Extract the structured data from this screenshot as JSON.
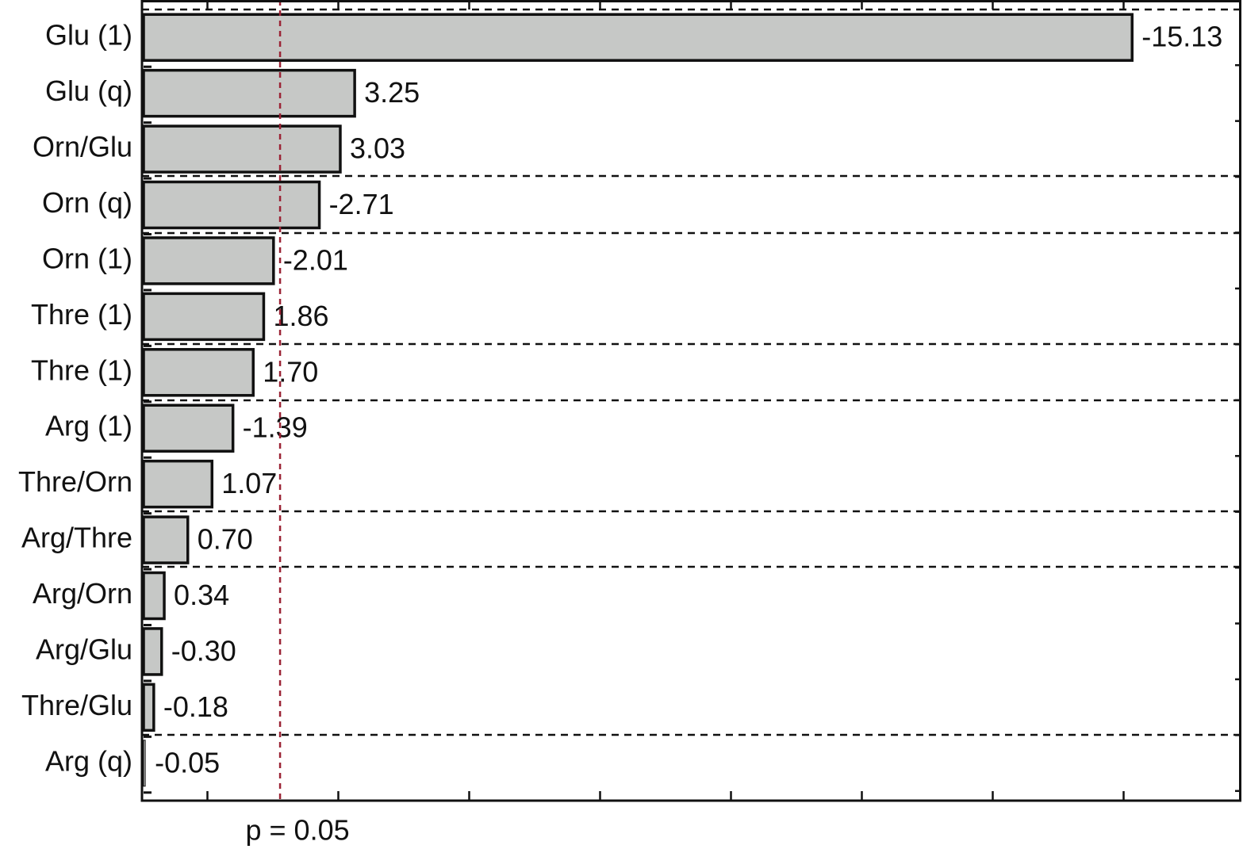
{
  "chart_data": {
    "type": "pareto",
    "categories": [
      "Glu (1)",
      "Glu (q)",
      "Orn/Glu",
      "Orn (q)",
      "Orn (1)",
      "Thre (1)",
      "Thre (1)",
      "Arg (1)",
      "Thre/Orn",
      "Arg/Thre",
      "Arg/Orn",
      "Arg/Glu",
      "Thre/Glu",
      "Arg (q)"
    ],
    "values": [
      -15.13,
      3.25,
      3.03,
      -2.71,
      -2.01,
      1.86,
      1.7,
      -1.39,
      1.07,
      0.7,
      0.34,
      -0.3,
      -0.18,
      -0.05
    ],
    "value_labels": [
      "-15.13",
      "3.25",
      "3.03",
      "-2.71",
      "-2.01",
      "1.86",
      "1.70",
      "-1.39",
      "1.07",
      "0.70",
      "0.34",
      "-0.30",
      "-0.18",
      "-0.05"
    ],
    "color": "#c6c8c6",
    "xlim": [
      0,
      16.8
    ],
    "xticks": [
      1,
      3,
      5,
      7,
      9,
      11,
      13,
      15
    ],
    "reference_line": {
      "value": 2.11,
      "label": "p = 0.05",
      "color": "#9b2335"
    }
  }
}
